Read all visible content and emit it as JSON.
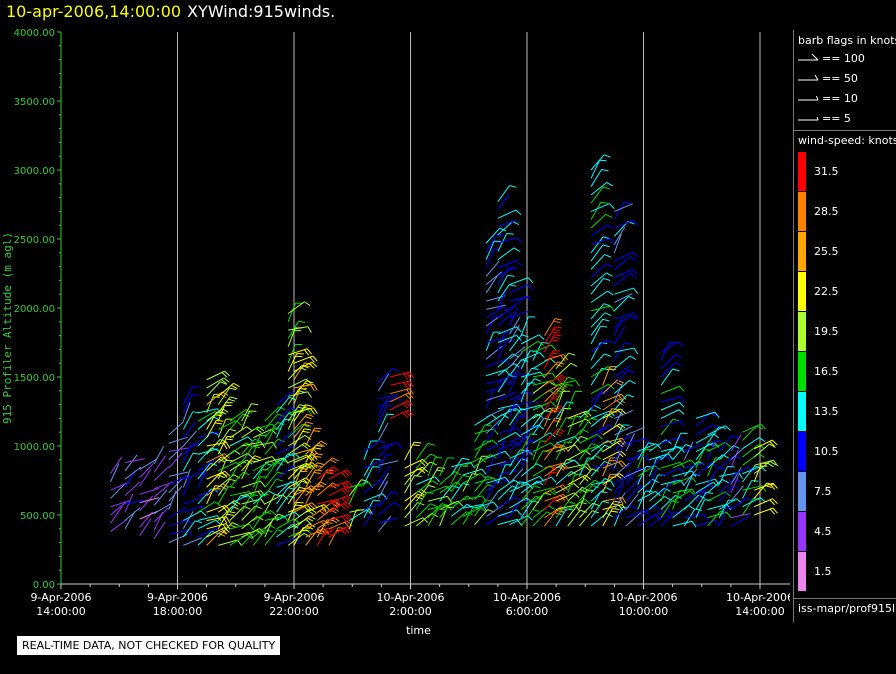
{
  "header": {
    "datetime": "10-apr-2006,14:00:00",
    "name": "XYWind:915winds."
  },
  "chart_data": {
    "type": "scatter",
    "subtype": "wind-barb time-height plot",
    "ylabel": "915 Profiler Altitude (m agl)",
    "xlabel": "time",
    "ylim": [
      0,
      4000
    ],
    "yticks": [
      "0.00",
      "500.00",
      "1000.00",
      "1500.00",
      "2000.00",
      "2500.00",
      "3000.00",
      "3500.00",
      "4000.00"
    ],
    "xticks": [
      {
        "date": "9-Apr-2006",
        "time": "14:00:00",
        "hour": 0
      },
      {
        "date": "9-Apr-2006",
        "time": "18:00:00",
        "hour": 4
      },
      {
        "date": "9-Apr-2006",
        "time": "22:00:00",
        "hour": 8
      },
      {
        "date": "10-Apr-2006",
        "time": "2:00:00",
        "hour": 12
      },
      {
        "date": "10-Apr-2006",
        "time": "6:00:00",
        "hour": 16
      },
      {
        "date": "10-Apr-2006",
        "time": "10:00:00",
        "hour": 20
      },
      {
        "date": "10-Apr-2006",
        "time": "14:00:00",
        "hour": 24
      }
    ],
    "xlim_hours": [
      0,
      24.6
    ],
    "grid_vertical": true,
    "axis_color": "#33cc33",
    "barb_legend": {
      "title": "barb flags in knots",
      "items": [
        "== 100",
        "== 50",
        "== 10",
        "== 5"
      ]
    },
    "speed_legend": {
      "title": "wind-speed: knots",
      "levels": [
        {
          "label": "31.5",
          "color": "#ff0000"
        },
        {
          "label": "28.5",
          "color": "#ff8000"
        },
        {
          "label": "25.5",
          "color": "#ffa500"
        },
        {
          "label": "22.5",
          "color": "#ffff00"
        },
        {
          "label": "19.5",
          "color": "#aaff33"
        },
        {
          "label": "16.5",
          "color": "#00dd00"
        },
        {
          "label": "13.5",
          "color": "#00ffff"
        },
        {
          "label": "10.5",
          "color": "#0000ff"
        },
        {
          "label": "7.5",
          "color": "#6495ed"
        },
        {
          "label": "4.5",
          "color": "#9933ff"
        },
        {
          "label": "1.5",
          "color": "#ee82ee"
        }
      ]
    },
    "profiles": [
      {
        "hour": 1.7,
        "bottom": 380,
        "top": 800,
        "speed": 6
      },
      {
        "hour": 2.2,
        "bottom": 400,
        "top": 900,
        "speed": 7
      },
      {
        "hour": 2.7,
        "bottom": 350,
        "top": 850,
        "speed": 5
      },
      {
        "hour": 3.2,
        "bottom": 330,
        "top": 900,
        "speed": 6
      },
      {
        "hour": 3.7,
        "bottom": 300,
        "top": 1100,
        "speed": 8
      },
      {
        "hour": 4.2,
        "bottom": 280,
        "top": 1300,
        "speed": 11
      },
      {
        "hour": 4.7,
        "bottom": 280,
        "top": 1250,
        "speed": 14
      },
      {
        "hour": 5.0,
        "bottom": 280,
        "top": 1500,
        "speed": 22
      },
      {
        "hour": 5.4,
        "bottom": 280,
        "top": 1400,
        "speed": 20
      },
      {
        "hour": 5.8,
        "bottom": 280,
        "top": 1200,
        "speed": 17
      },
      {
        "hour": 6.2,
        "bottom": 280,
        "top": 1200,
        "speed": 19
      },
      {
        "hour": 6.6,
        "bottom": 280,
        "top": 1150,
        "speed": 17
      },
      {
        "hour": 7.0,
        "bottom": 280,
        "top": 1200,
        "speed": 18
      },
      {
        "hour": 7.4,
        "bottom": 280,
        "top": 1300,
        "speed": 13
      },
      {
        "hour": 7.8,
        "bottom": 280,
        "top": 2000,
        "speed": 20
      },
      {
        "hour": 8.0,
        "bottom": 280,
        "top": 1600,
        "speed": 23
      },
      {
        "hour": 8.4,
        "bottom": 280,
        "top": 1000,
        "speed": 26
      },
      {
        "hour": 8.8,
        "bottom": 280,
        "top": 850,
        "speed": 29
      },
      {
        "hour": 9.2,
        "bottom": 280,
        "top": 800,
        "speed": 31
      },
      {
        "hour": 9.9,
        "bottom": 400,
        "top": 700,
        "speed": 17
      },
      {
        "hour": 10.4,
        "bottom": 420,
        "top": 1000,
        "speed": 12
      },
      {
        "hour": 10.9,
        "bottom": 380,
        "top": 1500,
        "speed": 10
      },
      {
        "hour": 11.3,
        "bottom": 1200,
        "top": 1500,
        "speed": 31
      },
      {
        "hour": 11.8,
        "bottom": 420,
        "top": 950,
        "speed": 21
      },
      {
        "hour": 12.2,
        "bottom": 420,
        "top": 900,
        "speed": 16
      },
      {
        "hour": 12.6,
        "bottom": 420,
        "top": 800,
        "speed": 18
      },
      {
        "hour": 13.0,
        "bottom": 420,
        "top": 800,
        "speed": 17
      },
      {
        "hour": 13.4,
        "bottom": 430,
        "top": 850,
        "speed": 16
      },
      {
        "hour": 13.8,
        "bottom": 430,
        "top": 900,
        "speed": 16
      },
      {
        "hour": 14.2,
        "bottom": 430,
        "top": 1200,
        "speed": 17
      },
      {
        "hour": 14.6,
        "bottom": 430,
        "top": 2500,
        "speed": 10
      },
      {
        "hour": 15.0,
        "bottom": 430,
        "top": 2800,
        "speed": 12
      },
      {
        "hour": 15.4,
        "bottom": 430,
        "top": 2200,
        "speed": 11
      },
      {
        "hour": 15.8,
        "bottom": 420,
        "top": 1800,
        "speed": 13
      },
      {
        "hour": 16.2,
        "bottom": 420,
        "top": 1700,
        "speed": 16
      },
      {
        "hour": 16.6,
        "bottom": 420,
        "top": 1800,
        "speed": 31
      },
      {
        "hour": 17.0,
        "bottom": 420,
        "top": 1600,
        "speed": 17
      },
      {
        "hour": 17.4,
        "bottom": 420,
        "top": 1300,
        "speed": 19
      },
      {
        "hour": 17.8,
        "bottom": 420,
        "top": 1200,
        "speed": 17
      },
      {
        "hour": 18.2,
        "bottom": 420,
        "top": 3000,
        "speed": 13
      },
      {
        "hour": 18.6,
        "bottom": 420,
        "top": 1450,
        "speed": 25
      },
      {
        "hour": 19.0,
        "bottom": 420,
        "top": 2700,
        "speed": 10
      },
      {
        "hour": 19.4,
        "bottom": 420,
        "top": 1100,
        "speed": 9
      },
      {
        "hour": 19.8,
        "bottom": 420,
        "top": 1000,
        "speed": 14
      },
      {
        "hour": 20.2,
        "bottom": 420,
        "top": 1000,
        "speed": 12
      },
      {
        "hour": 20.6,
        "bottom": 420,
        "top": 1700,
        "speed": 13
      },
      {
        "hour": 21.0,
        "bottom": 420,
        "top": 1000,
        "speed": 15
      },
      {
        "hour": 21.4,
        "bottom": 420,
        "top": 1000,
        "speed": 11
      },
      {
        "hour": 21.8,
        "bottom": 420,
        "top": 1200,
        "speed": 13
      },
      {
        "hour": 22.2,
        "bottom": 420,
        "top": 1100,
        "speed": 14
      },
      {
        "hour": 22.6,
        "bottom": 420,
        "top": 1000,
        "speed": 12
      },
      {
        "hour": 23.0,
        "bottom": 420,
        "top": 1000,
        "speed": 8
      },
      {
        "hour": 23.4,
        "bottom": 500,
        "top": 1100,
        "speed": 16
      },
      {
        "hour": 23.8,
        "bottom": 500,
        "top": 1000,
        "speed": 21
      }
    ]
  },
  "source_label": "iss-mapr/prof915l",
  "notice": "REAL-TIME DATA, NOT CHECKED FOR QUALITY"
}
